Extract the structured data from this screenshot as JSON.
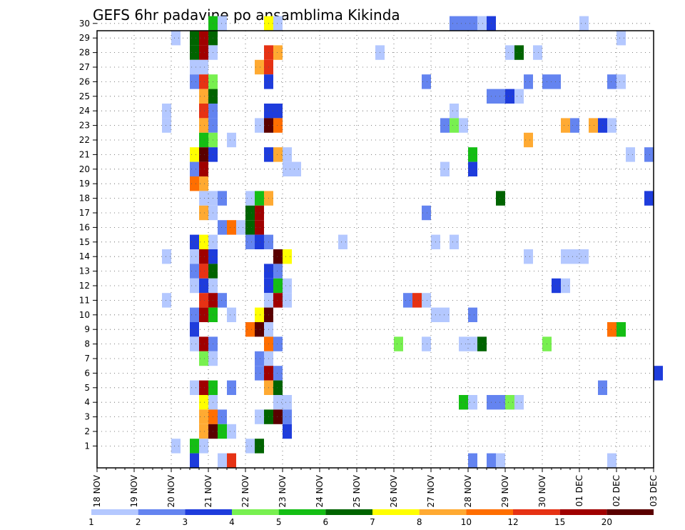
{
  "chart_data": {
    "type": "heatmap",
    "title": "GEFS 6hr padavine po ansamblima Kikinda",
    "x_tick_labels": [
      "18 NOV",
      "19 NOV",
      "20 NOV",
      "21 NOV",
      "22 NOV",
      "23 NOV",
      "24 NOV",
      "25 NOV",
      "26 NOV",
      "27 NOV",
      "28 NOV",
      "29 NOV",
      "30 NOV",
      "01 DEC",
      "02 DEC",
      "03 DEC"
    ],
    "x_step": "6hr",
    "y_tick_labels": [
      "1",
      "2",
      "3",
      "4",
      "5",
      "6",
      "7",
      "8",
      "9",
      "10",
      "11",
      "12",
      "13",
      "14",
      "15",
      "16",
      "17",
      "18",
      "19",
      "20",
      "21",
      "22",
      "23",
      "24",
      "25",
      "26",
      "27",
      "28",
      "29",
      "30"
    ],
    "grid": true,
    "colorbar": {
      "labels": [
        "1",
        "2",
        "3",
        "4",
        "5",
        "6",
        "7",
        "8",
        "10",
        "12",
        "15",
        "20"
      ],
      "colors": [
        "#b4c8ff",
        "#6484f0",
        "#1e3cdc",
        "#78f050",
        "#14be14",
        "#006400",
        "#ffff00",
        "#ffaa32",
        "#ff6e00",
        "#e63214",
        "#a00000",
        "#5a0000"
      ]
    },
    "cells": [
      [
        30,
        12,
        5
      ],
      [
        30,
        13,
        1
      ],
      [
        30,
        18,
        7
      ],
      [
        30,
        19,
        1
      ],
      [
        30,
        38,
        2
      ],
      [
        30,
        39,
        2
      ],
      [
        30,
        40,
        2
      ],
      [
        30,
        41,
        1
      ],
      [
        30,
        42,
        3
      ],
      [
        30,
        52,
        1
      ],
      [
        29,
        8,
        1
      ],
      [
        29,
        10,
        6
      ],
      [
        29,
        11,
        11
      ],
      [
        29,
        12,
        6
      ],
      [
        29,
        56,
        1
      ],
      [
        28,
        10,
        6
      ],
      [
        28,
        11,
        11
      ],
      [
        28,
        12,
        1
      ],
      [
        28,
        18,
        10
      ],
      [
        28,
        19,
        8
      ],
      [
        28,
        30,
        1
      ],
      [
        28,
        44,
        1
      ],
      [
        28,
        45,
        6
      ],
      [
        28,
        47,
        1
      ],
      [
        27,
        10,
        1
      ],
      [
        27,
        11,
        1
      ],
      [
        27,
        17,
        8
      ],
      [
        27,
        18,
        10
      ],
      [
        26,
        10,
        2
      ],
      [
        26,
        11,
        10
      ],
      [
        26,
        12,
        4
      ],
      [
        26,
        18,
        3
      ],
      [
        26,
        35,
        2
      ],
      [
        26,
        46,
        2
      ],
      [
        26,
        48,
        2
      ],
      [
        26,
        49,
        2
      ],
      [
        26,
        55,
        2
      ],
      [
        26,
        56,
        1
      ],
      [
        25,
        11,
        8
      ],
      [
        25,
        12,
        6
      ],
      [
        25,
        42,
        2
      ],
      [
        25,
        43,
        2
      ],
      [
        25,
        44,
        3
      ],
      [
        25,
        45,
        1
      ],
      [
        24,
        7,
        1
      ],
      [
        24,
        11,
        10
      ],
      [
        24,
        12,
        2
      ],
      [
        24,
        18,
        3
      ],
      [
        24,
        19,
        3
      ],
      [
        24,
        38,
        1
      ],
      [
        23,
        7,
        1
      ],
      [
        23,
        11,
        8
      ],
      [
        23,
        12,
        2
      ],
      [
        23,
        17,
        1
      ],
      [
        23,
        18,
        12
      ],
      [
        23,
        19,
        9
      ],
      [
        23,
        37,
        2
      ],
      [
        23,
        38,
        4
      ],
      [
        23,
        39,
        1
      ],
      [
        23,
        50,
        8
      ],
      [
        23,
        51,
        2
      ],
      [
        23,
        53,
        8
      ],
      [
        23,
        54,
        3
      ],
      [
        23,
        55,
        1
      ],
      [
        22,
        11,
        5
      ],
      [
        22,
        12,
        4
      ],
      [
        22,
        14,
        1
      ],
      [
        22,
        46,
        8
      ],
      [
        21,
        10,
        7
      ],
      [
        21,
        11,
        12
      ],
      [
        21,
        12,
        3
      ],
      [
        21,
        18,
        3
      ],
      [
        21,
        19,
        8
      ],
      [
        21,
        20,
        1
      ],
      [
        21,
        40,
        5
      ],
      [
        21,
        57,
        1
      ],
      [
        21,
        59,
        2
      ],
      [
        20,
        10,
        2
      ],
      [
        20,
        11,
        11
      ],
      [
        20,
        20,
        1
      ],
      [
        20,
        21,
        1
      ],
      [
        20,
        37,
        1
      ],
      [
        20,
        40,
        3
      ],
      [
        19,
        10,
        9
      ],
      [
        19,
        11,
        8
      ],
      [
        18,
        11,
        1
      ],
      [
        18,
        12,
        1
      ],
      [
        18,
        13,
        2
      ],
      [
        18,
        16,
        1
      ],
      [
        18,
        17,
        5
      ],
      [
        18,
        18,
        8
      ],
      [
        18,
        43,
        6
      ],
      [
        18,
        59,
        3
      ],
      [
        17,
        11,
        8
      ],
      [
        17,
        12,
        1
      ],
      [
        17,
        16,
        6
      ],
      [
        17,
        17,
        11
      ],
      [
        17,
        35,
        2
      ],
      [
        16,
        13,
        2
      ],
      [
        16,
        14,
        9
      ],
      [
        16,
        15,
        1
      ],
      [
        16,
        16,
        6
      ],
      [
        16,
        17,
        11
      ],
      [
        15,
        10,
        3
      ],
      [
        15,
        11,
        7
      ],
      [
        15,
        12,
        1
      ],
      [
        15,
        16,
        2
      ],
      [
        15,
        17,
        3
      ],
      [
        15,
        18,
        2
      ],
      [
        15,
        26,
        1
      ],
      [
        15,
        36,
        1
      ],
      [
        15,
        38,
        1
      ],
      [
        14,
        7,
        1
      ],
      [
        14,
        10,
        1
      ],
      [
        14,
        11,
        11
      ],
      [
        14,
        12,
        3
      ],
      [
        14,
        19,
        12
      ],
      [
        14,
        20,
        7
      ],
      [
        14,
        46,
        1
      ],
      [
        14,
        50,
        1
      ],
      [
        14,
        51,
        1
      ],
      [
        14,
        52,
        1
      ],
      [
        13,
        10,
        2
      ],
      [
        13,
        11,
        10
      ],
      [
        13,
        12,
        6
      ],
      [
        13,
        18,
        3
      ],
      [
        13,
        19,
        2
      ],
      [
        12,
        10,
        1
      ],
      [
        12,
        11,
        3
      ],
      [
        12,
        12,
        1
      ],
      [
        12,
        18,
        3
      ],
      [
        12,
        19,
        5
      ],
      [
        12,
        20,
        1
      ],
      [
        12,
        49,
        3
      ],
      [
        12,
        50,
        1
      ],
      [
        11,
        7,
        1
      ],
      [
        11,
        11,
        10
      ],
      [
        11,
        12,
        11
      ],
      [
        11,
        13,
        2
      ],
      [
        11,
        18,
        1
      ],
      [
        11,
        19,
        11
      ],
      [
        11,
        20,
        1
      ],
      [
        11,
        33,
        2
      ],
      [
        11,
        34,
        10
      ],
      [
        11,
        35,
        1
      ],
      [
        10,
        10,
        2
      ],
      [
        10,
        11,
        11
      ],
      [
        10,
        12,
        5
      ],
      [
        10,
        14,
        1
      ],
      [
        10,
        17,
        7
      ],
      [
        10,
        18,
        12
      ],
      [
        10,
        36,
        1
      ],
      [
        10,
        37,
        1
      ],
      [
        10,
        40,
        2
      ],
      [
        9,
        10,
        3
      ],
      [
        9,
        16,
        9
      ],
      [
        9,
        17,
        12
      ],
      [
        9,
        18,
        1
      ],
      [
        9,
        55,
        9
      ],
      [
        9,
        56,
        5
      ],
      [
        8,
        10,
        1
      ],
      [
        8,
        11,
        11
      ],
      [
        8,
        12,
        2
      ],
      [
        8,
        18,
        9
      ],
      [
        8,
        19,
        2
      ],
      [
        8,
        32,
        4
      ],
      [
        8,
        35,
        1
      ],
      [
        8,
        39,
        1
      ],
      [
        8,
        40,
        1
      ],
      [
        8,
        41,
        6
      ],
      [
        8,
        48,
        4
      ],
      [
        7,
        11,
        4
      ],
      [
        7,
        12,
        1
      ],
      [
        7,
        17,
        2
      ],
      [
        7,
        18,
        1
      ],
      [
        6,
        17,
        2
      ],
      [
        6,
        18,
        11
      ],
      [
        6,
        19,
        2
      ],
      [
        6,
        60,
        3
      ],
      [
        5,
        10,
        1
      ],
      [
        5,
        11,
        11
      ],
      [
        5,
        12,
        5
      ],
      [
        5,
        14,
        2
      ],
      [
        5,
        18,
        8
      ],
      [
        5,
        19,
        6
      ],
      [
        5,
        54,
        2
      ],
      [
        4,
        11,
        7
      ],
      [
        4,
        12,
        1
      ],
      [
        4,
        19,
        1
      ],
      [
        4,
        20,
        1
      ],
      [
        4,
        39,
        5
      ],
      [
        4,
        40,
        1
      ],
      [
        4,
        42,
        2
      ],
      [
        4,
        43,
        2
      ],
      [
        4,
        44,
        4
      ],
      [
        4,
        45,
        1
      ],
      [
        3,
        11,
        8
      ],
      [
        3,
        12,
        9
      ],
      [
        3,
        13,
        2
      ],
      [
        3,
        17,
        1
      ],
      [
        3,
        18,
        6
      ],
      [
        3,
        19,
        12
      ],
      [
        3,
        20,
        2
      ],
      [
        2,
        11,
        8
      ],
      [
        2,
        12,
        12
      ],
      [
        2,
        13,
        5
      ],
      [
        2,
        14,
        1
      ],
      [
        2,
        20,
        3
      ],
      [
        1,
        8,
        1
      ],
      [
        1,
        10,
        5
      ],
      [
        1,
        11,
        1
      ],
      [
        1,
        16,
        1
      ],
      [
        1,
        17,
        6
      ],
      [
        0,
        10,
        3
      ],
      [
        0,
        13,
        1
      ],
      [
        0,
        14,
        10
      ],
      [
        0,
        40,
        2
      ],
      [
        0,
        42,
        2
      ],
      [
        0,
        43,
        1
      ],
      [
        0,
        55,
        1
      ]
    ]
  }
}
